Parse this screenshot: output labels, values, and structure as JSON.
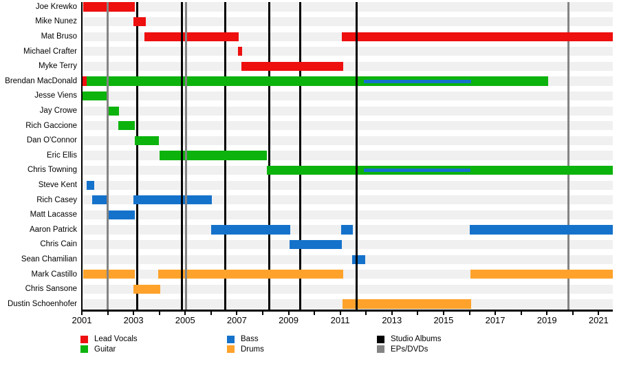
{
  "chart_data": {
    "type": "timeline",
    "x_axis": {
      "start": 2001,
      "end": 2021.55,
      "tick_interval": 1,
      "label_interval": 2,
      "labels": [
        "2001",
        "2003",
        "2005",
        "2007",
        "2009",
        "2011",
        "2013",
        "2015",
        "2017",
        "2019",
        "2021"
      ],
      "label_years": [
        2001,
        2003,
        2005,
        2007,
        2009,
        2011,
        2013,
        2015,
        2017,
        2019,
        2021
      ]
    },
    "colors": {
      "lead_vocals": "#ee0f0f",
      "guitar": "#0db30d",
      "bass": "#1572cb",
      "drums": "#ffa22b",
      "album_line": "#000000",
      "ep_line": "#848484",
      "row_stripe": "#f0f0f0",
      "axis": "#000000"
    },
    "rows": [
      {
        "name": "Joe Krewko",
        "bars": [
          {
            "role": "lead_vocals",
            "start": 2001.05,
            "end": 2003.05
          }
        ]
      },
      {
        "name": "Mike Nunez",
        "bars": [
          {
            "role": "lead_vocals",
            "start": 2003.0,
            "end": 2003.47
          }
        ]
      },
      {
        "name": "Mat Bruso",
        "bars": [
          {
            "role": "lead_vocals",
            "start": 2003.42,
            "end": 2007.07
          },
          {
            "role": "lead_vocals",
            "start": 2011.06,
            "end": 2021.55
          }
        ]
      },
      {
        "name": "Michael Crafter",
        "bars": [
          {
            "role": "lead_vocals",
            "start": 2007.04,
            "end": 2007.21
          }
        ]
      },
      {
        "name": "Myke Terry",
        "bars": [
          {
            "role": "lead_vocals",
            "start": 2007.17,
            "end": 2011.11
          }
        ]
      },
      {
        "name": "Brendan MacDonald",
        "bars": [
          {
            "role": "guitar",
            "start": 2001.0,
            "end": 2019.06
          },
          {
            "role": "lead_vocals",
            "start": 2001.0,
            "end": 2001.18
          }
        ],
        "overlays": [
          {
            "role": "bass",
            "start": 2011.92,
            "end": 2016.06
          }
        ]
      },
      {
        "name": "Jesse Viens",
        "bars": [
          {
            "role": "guitar",
            "start": 2001.0,
            "end": 2002.0
          }
        ]
      },
      {
        "name": "Jay Crowe",
        "bars": [
          {
            "role": "guitar",
            "start": 2002.04,
            "end": 2002.45
          }
        ]
      },
      {
        "name": "Rich Gaccione",
        "bars": [
          {
            "role": "guitar",
            "start": 2002.41,
            "end": 2003.05
          }
        ]
      },
      {
        "name": "Dan O'Connor",
        "bars": [
          {
            "role": "guitar",
            "start": 2003.05,
            "end": 2003.98
          }
        ]
      },
      {
        "name": "Eric Ellis",
        "bars": [
          {
            "role": "guitar",
            "start": 2004.01,
            "end": 2008.17
          }
        ]
      },
      {
        "name": "Chris Towning",
        "bars": [
          {
            "role": "guitar",
            "start": 2008.17,
            "end": 2021.55
          }
        ],
        "overlays": [
          {
            "role": "bass",
            "start": 2011.92,
            "end": 2016.04
          }
        ]
      },
      {
        "name": "Steve Kent",
        "bars": [
          {
            "role": "bass",
            "start": 2001.19,
            "end": 2001.47
          }
        ]
      },
      {
        "name": "Rich Casey",
        "bars": [
          {
            "role": "bass",
            "start": 2001.4,
            "end": 2002.02
          },
          {
            "role": "bass",
            "start": 2003.0,
            "end": 2006.04
          }
        ]
      },
      {
        "name": "Matt Lacasse",
        "bars": [
          {
            "role": "bass",
            "start": 2002.02,
            "end": 2003.05
          }
        ]
      },
      {
        "name": "Aaron Patrick",
        "bars": [
          {
            "role": "bass",
            "start": 2006.01,
            "end": 2009.06
          },
          {
            "role": "bass",
            "start": 2011.03,
            "end": 2011.48
          },
          {
            "role": "bass",
            "start": 2016.02,
            "end": 2021.55
          }
        ]
      },
      {
        "name": "Chris Cain",
        "bars": [
          {
            "role": "bass",
            "start": 2009.04,
            "end": 2011.05
          }
        ]
      },
      {
        "name": "Sean Chamilian",
        "bars": [
          {
            "role": "bass",
            "start": 2011.47,
            "end": 2011.97
          }
        ]
      },
      {
        "name": "Mark Castillo",
        "bars": [
          {
            "role": "drums",
            "start": 2001.05,
            "end": 2003.05
          },
          {
            "role": "drums",
            "start": 2003.95,
            "end": 2011.11
          },
          {
            "role": "drums",
            "start": 2016.04,
            "end": 2021.55
          }
        ]
      },
      {
        "name": "Chris Sansone",
        "bars": [
          {
            "role": "drums",
            "start": 2003.0,
            "end": 2004.04
          }
        ]
      },
      {
        "name": "Dustin Schoenhofer",
        "bars": [
          {
            "role": "drums",
            "start": 2011.08,
            "end": 2016.06
          }
        ]
      }
    ],
    "event_lines": [
      {
        "year": 2002.0,
        "type": "ep",
        "layer": "front"
      },
      {
        "year": 2003.14,
        "type": "album",
        "layer": "back"
      },
      {
        "year": 2004.86,
        "type": "album",
        "layer": "front"
      },
      {
        "year": 2005.03,
        "type": "ep",
        "layer": "front"
      },
      {
        "year": 2006.54,
        "type": "album",
        "layer": "back"
      },
      {
        "year": 2008.25,
        "type": "album",
        "layer": "back"
      },
      {
        "year": 2009.46,
        "type": "album",
        "layer": "back"
      },
      {
        "year": 2011.64,
        "type": "album",
        "layer": "front"
      },
      {
        "year": 2019.84,
        "type": "ep",
        "layer": "back"
      }
    ],
    "legend": {
      "columns": [
        [
          {
            "label": "Lead Vocals",
            "role": "lead_vocals"
          },
          {
            "label": "Guitar",
            "role": "guitar"
          }
        ],
        [
          {
            "label": "Bass",
            "role": "bass"
          },
          {
            "label": "Drums",
            "role": "drums"
          }
        ],
        [
          {
            "label": "Studio Albums",
            "role": "album_line"
          },
          {
            "label": "EPs/DVDs",
            "role": "ep_line"
          }
        ]
      ]
    }
  }
}
